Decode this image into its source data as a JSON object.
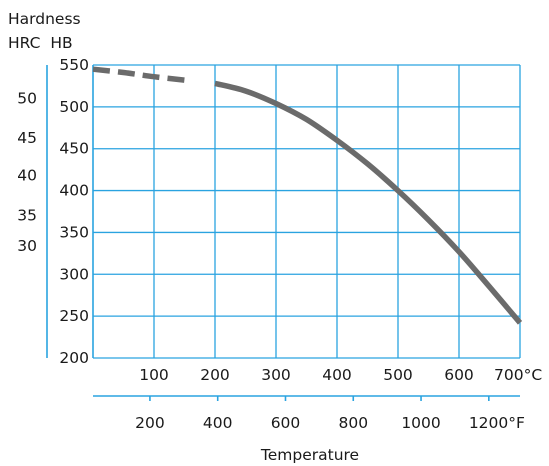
{
  "chart_data": {
    "type": "line",
    "title": "",
    "header_lines": [
      "Hardness",
      "HRC  HB"
    ],
    "xlabel": "Temperature",
    "hb_axis": {
      "ticks": [
        550,
        500,
        450,
        400,
        350,
        300,
        250,
        200
      ],
      "range": [
        200,
        550
      ]
    },
    "hrc_axis": {
      "ticks": [
        50,
        45,
        40,
        35,
        30
      ],
      "hb_equivalent": [
        510,
        463,
        418,
        370,
        334
      ]
    },
    "celsius_axis": {
      "ticks": [
        "100",
        "200",
        "300",
        "400",
        "500",
        "600",
        "700°C"
      ],
      "values": [
        100,
        200,
        300,
        400,
        500,
        600,
        700
      ],
      "range": [
        0,
        700
      ]
    },
    "fahrenheit_axis": {
      "ticks": [
        "200",
        "400",
        "600",
        "800",
        "1000",
        "1200°F"
      ],
      "values": [
        200,
        400,
        600,
        800,
        1000,
        1200
      ]
    },
    "grid": true,
    "series": [
      {
        "style": "dashed",
        "color": "#6b6b6b",
        "points": [
          [
            0,
            545
          ],
          [
            50,
            541
          ],
          [
            100,
            536
          ],
          [
            150,
            532
          ]
        ]
      },
      {
        "style": "solid",
        "color": "#6b6b6b",
        "points": [
          [
            200,
            528
          ],
          [
            250,
            519
          ],
          [
            300,
            504
          ],
          [
            350,
            485
          ],
          [
            400,
            460
          ],
          [
            450,
            432
          ],
          [
            500,
            400
          ],
          [
            550,
            365
          ],
          [
            600,
            327
          ],
          [
            650,
            285
          ],
          [
            700,
            242
          ]
        ]
      }
    ]
  }
}
